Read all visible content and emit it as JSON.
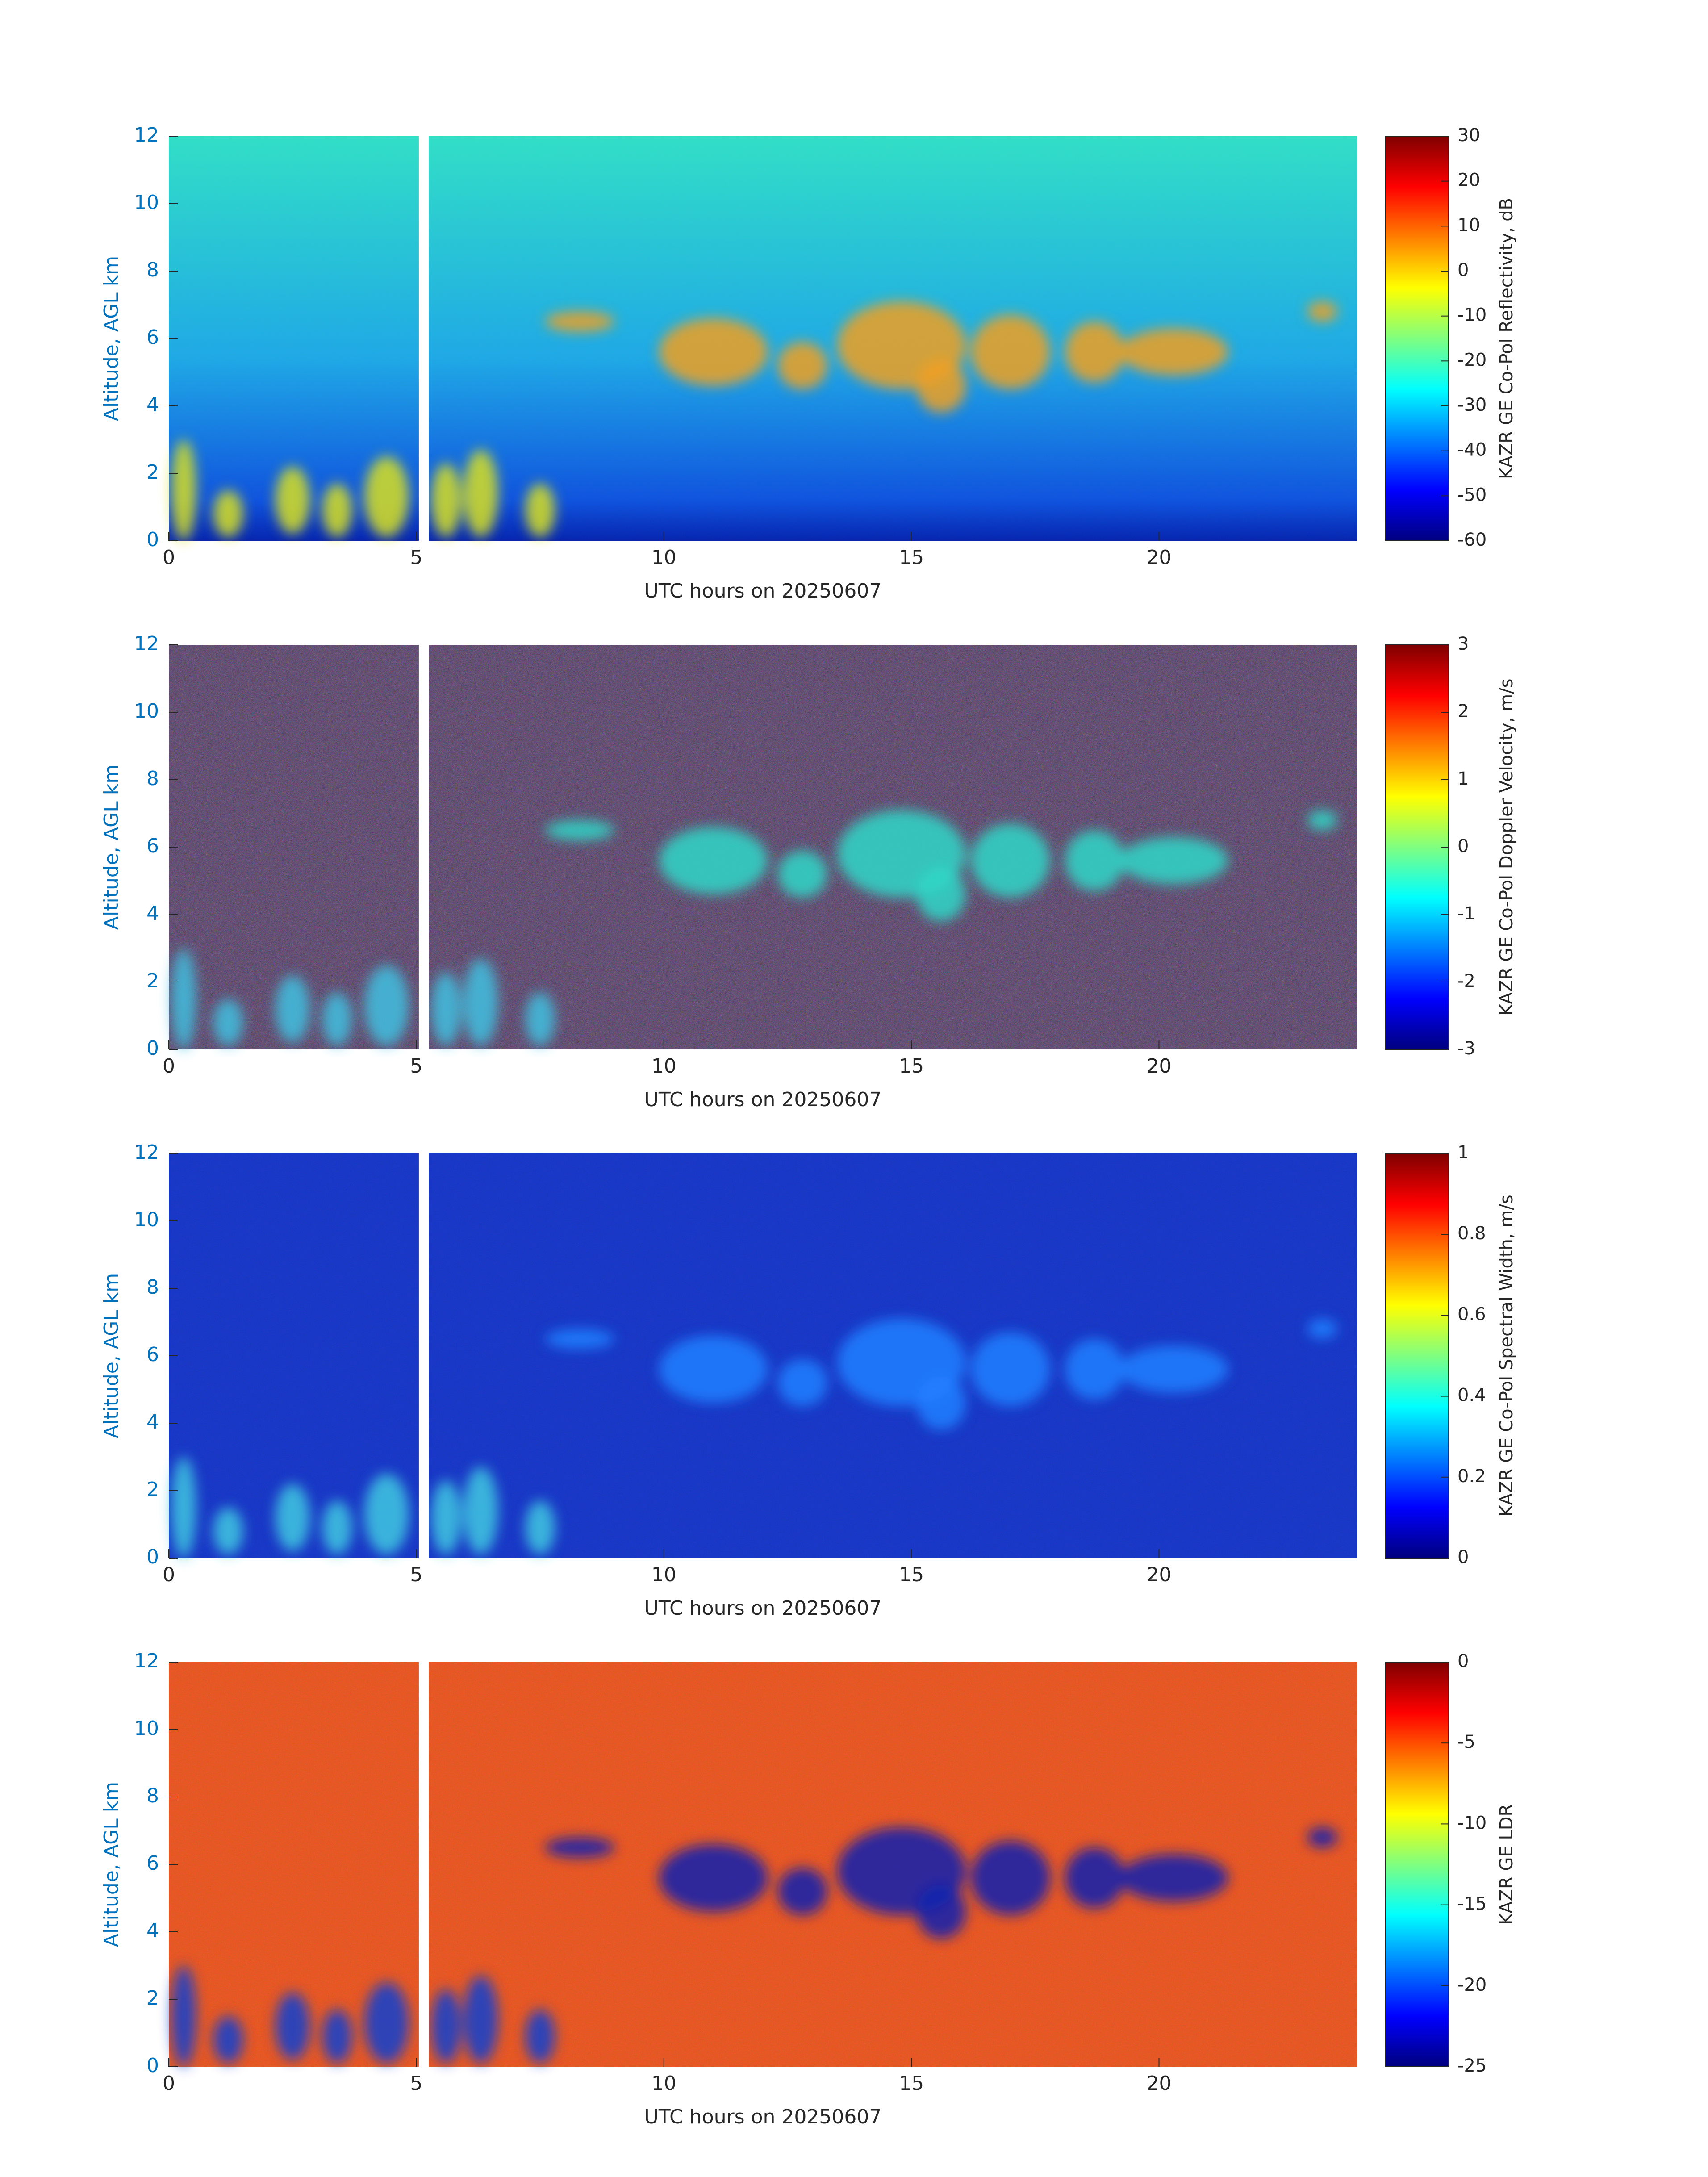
{
  "chart_data": [
    {
      "type": "heatmap",
      "xlabel": "UTC hours on 20250607",
      "ylabel": "Altitude, AGL km",
      "colorbar_label": "KAZR GE Co-Pol Reflectivity, dB",
      "colormap": "jet",
      "xlim": [
        0,
        24
      ],
      "xticks": [
        0,
        5,
        10,
        15,
        20
      ],
      "ylim": [
        0,
        12
      ],
      "yticks": [
        0,
        2,
        4,
        6,
        8,
        10,
        12
      ],
      "colorbar_lim": [
        -60,
        30
      ],
      "colorbar_ticks": [
        -60,
        -50,
        -40,
        -30,
        -20,
        -10,
        0,
        10,
        20,
        30
      ]
    },
    {
      "type": "heatmap",
      "xlabel": "UTC hours on 20250607",
      "ylabel": "Altitude, AGL km",
      "colorbar_label": "KAZR GE Co-Pol Doppler Velocity, m/s",
      "colormap": "jet",
      "xlim": [
        0,
        24
      ],
      "xticks": [
        0,
        5,
        10,
        15,
        20
      ],
      "ylim": [
        0,
        12
      ],
      "yticks": [
        0,
        2,
        4,
        6,
        8,
        10,
        12
      ],
      "colorbar_lim": [
        -3,
        3
      ],
      "colorbar_ticks": [
        -3,
        -2,
        -1,
        0,
        1,
        2,
        3
      ]
    },
    {
      "type": "heatmap",
      "xlabel": "UTC hours on 20250607",
      "ylabel": "Altitude, AGL km",
      "colorbar_label": "KAZR GE Co-Pol Spectral Width, m/s",
      "colormap": "jet",
      "xlim": [
        0,
        24
      ],
      "xticks": [
        0,
        5,
        10,
        15,
        20
      ],
      "ylim": [
        0,
        12
      ],
      "yticks": [
        0,
        2,
        4,
        6,
        8,
        10,
        12
      ],
      "colorbar_lim": [
        0,
        1
      ],
      "colorbar_ticks": [
        0,
        0.2,
        0.4,
        0.6,
        0.8,
        1
      ]
    },
    {
      "type": "heatmap",
      "xlabel": "UTC hours on 20250607",
      "ylabel": "Altitude, AGL km",
      "colorbar_label": "KAZR GE LDR",
      "colormap": "jet",
      "xlim": [
        0,
        24
      ],
      "xticks": [
        0,
        5,
        10,
        15,
        20
      ],
      "ylim": [
        0,
        12
      ],
      "yticks": [
        0,
        2,
        4,
        6,
        8,
        10,
        12
      ],
      "colorbar_lim": [
        -25,
        0
      ],
      "colorbar_ticks": [
        -25,
        -20,
        -15,
        -10,
        -5,
        0
      ]
    }
  ]
}
